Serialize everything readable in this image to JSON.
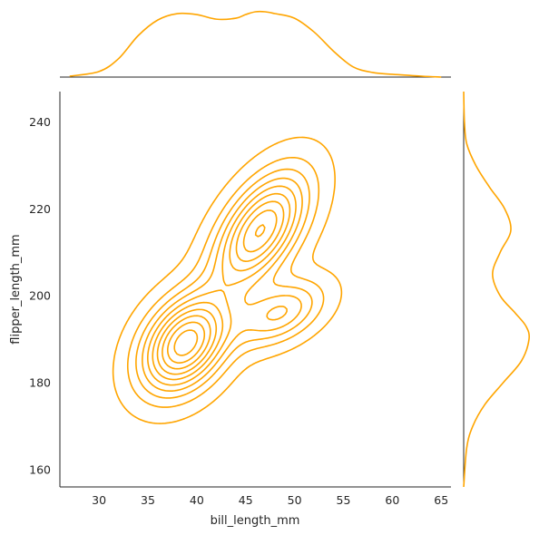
{
  "chart_data": {
    "type": "kde_jointplot",
    "color": "#FFA500",
    "joint": {
      "type": "contour",
      "xlabel": "bill_length_mm",
      "ylabel": "flipper_length_mm",
      "xlim": [
        26,
        66
      ],
      "ylim": [
        156,
        247
      ],
      "xticks": [
        30,
        35,
        40,
        45,
        50,
        55,
        60,
        65
      ],
      "yticks": [
        160,
        180,
        200,
        220,
        240
      ],
      "grid": false,
      "density_peaks": [
        {
          "x": 38.8,
          "y": 189,
          "weight": 1.0
        },
        {
          "x": 46.5,
          "y": 215,
          "weight": 0.85
        },
        {
          "x": 48.5,
          "y": 196,
          "weight": 0.45
        }
      ],
      "contour_levels": 10
    },
    "marginal_x": {
      "type": "line",
      "x": [
        27,
        30,
        32,
        34,
        36,
        38,
        40,
        42,
        44,
        45,
        46,
        47,
        48,
        50,
        52,
        54,
        56,
        58,
        60,
        63,
        65
      ],
      "density": [
        0.001,
        0.006,
        0.02,
        0.045,
        0.062,
        0.069,
        0.068,
        0.063,
        0.064,
        0.068,
        0.071,
        0.071,
        0.069,
        0.064,
        0.049,
        0.028,
        0.011,
        0.005,
        0.003,
        0.001,
        0.0
      ]
    },
    "marginal_y": {
      "type": "line",
      "y": [
        156,
        165,
        170,
        175,
        180,
        185,
        190,
        193,
        196,
        200,
        205,
        210,
        215,
        220,
        225,
        230,
        235,
        240,
        247
      ],
      "density": [
        0.0,
        0.002,
        0.006,
        0.014,
        0.026,
        0.038,
        0.043,
        0.041,
        0.034,
        0.024,
        0.019,
        0.024,
        0.031,
        0.027,
        0.017,
        0.008,
        0.002,
        0.0005,
        0.0
      ]
    }
  }
}
